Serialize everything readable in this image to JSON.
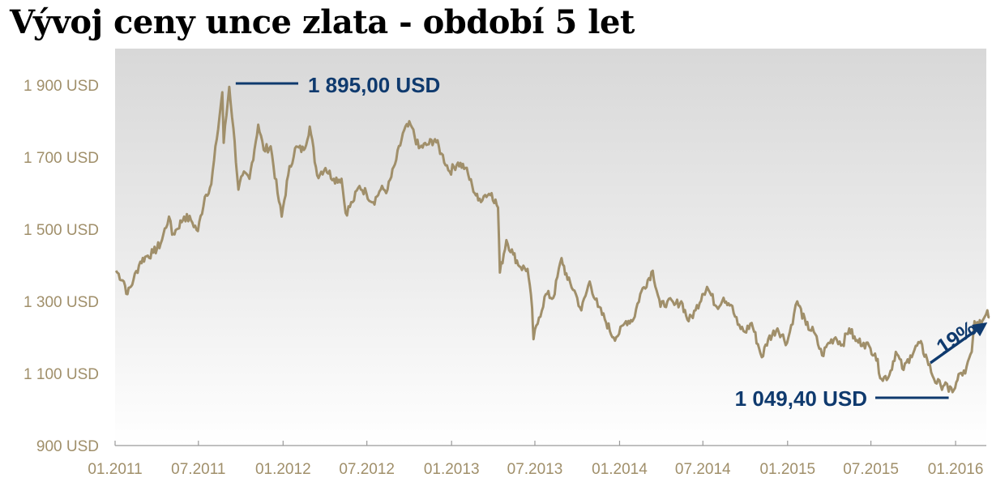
{
  "chart_data": {
    "type": "line",
    "title": "Vývoj ceny unce zlata - období 5 let",
    "xlabel": "",
    "ylabel": "",
    "x_ticks": [
      "01.2011",
      "07.2011",
      "01.2012",
      "07.2012",
      "01.2013",
      "07.2013",
      "01.2014",
      "07.2014",
      "01.2015",
      "07.2015",
      "01.2016"
    ],
    "y_ticks": [
      "900 USD",
      "1 100 USD",
      "1 300 USD",
      "1 500 USD",
      "1 700 USD",
      "1 900 USD"
    ],
    "ylim": [
      900,
      1950
    ],
    "xlim": [
      "2011-01",
      "2016-03"
    ],
    "grid": false,
    "legend": "none",
    "series": [
      {
        "points": [
          [
            "2011-01-03",
            1385
          ],
          [
            "2011-01-20",
            1355
          ],
          [
            "2011-01-28",
            1320
          ],
          [
            "2011-02-10",
            1360
          ],
          [
            "2011-02-25",
            1410
          ],
          [
            "2011-03-10",
            1425
          ],
          [
            "2011-03-25",
            1435
          ],
          [
            "2011-04-10",
            1460
          ],
          [
            "2011-04-28",
            1535
          ],
          [
            "2011-05-05",
            1485
          ],
          [
            "2011-05-15",
            1500
          ],
          [
            "2011-05-31",
            1535
          ],
          [
            "2011-06-15",
            1525
          ],
          [
            "2011-06-30",
            1495
          ],
          [
            "2011-07-15",
            1590
          ],
          [
            "2011-07-29",
            1625
          ],
          [
            "2011-08-10",
            1750
          ],
          [
            "2011-08-22",
            1880
          ],
          [
            "2011-08-25",
            1740
          ],
          [
            "2011-09-06",
            1895
          ],
          [
            "2011-09-15",
            1780
          ],
          [
            "2011-09-26",
            1610
          ],
          [
            "2011-10-05",
            1650
          ],
          [
            "2011-10-20",
            1640
          ],
          [
            "2011-11-08",
            1790
          ],
          [
            "2011-11-20",
            1720
          ],
          [
            "2011-12-05",
            1730
          ],
          [
            "2011-12-20",
            1600
          ],
          [
            "2011-12-29",
            1535
          ],
          [
            "2012-01-12",
            1650
          ],
          [
            "2012-01-27",
            1725
          ],
          [
            "2012-02-15",
            1720
          ],
          [
            "2012-02-28",
            1785
          ],
          [
            "2012-03-15",
            1650
          ],
          [
            "2012-04-02",
            1670
          ],
          [
            "2012-04-20",
            1640
          ],
          [
            "2012-05-07",
            1640
          ],
          [
            "2012-05-16",
            1545
          ],
          [
            "2012-05-31",
            1575
          ],
          [
            "2012-06-15",
            1620
          ],
          [
            "2012-06-30",
            1600
          ],
          [
            "2012-07-15",
            1575
          ],
          [
            "2012-07-31",
            1610
          ],
          [
            "2012-08-15",
            1610
          ],
          [
            "2012-08-31",
            1680
          ],
          [
            "2012-09-20",
            1775
          ],
          [
            "2012-10-04",
            1790
          ],
          [
            "2012-10-22",
            1725
          ],
          [
            "2012-11-10",
            1735
          ],
          [
            "2012-11-26",
            1750
          ],
          [
            "2012-12-10",
            1710
          ],
          [
            "2012-12-28",
            1660
          ],
          [
            "2013-01-15",
            1685
          ],
          [
            "2013-01-31",
            1670
          ],
          [
            "2013-02-15",
            1620
          ],
          [
            "2013-02-28",
            1580
          ],
          [
            "2013-03-15",
            1595
          ],
          [
            "2013-03-29",
            1600
          ],
          [
            "2013-04-12",
            1560
          ],
          [
            "2013-04-16",
            1380
          ],
          [
            "2013-04-30",
            1470
          ],
          [
            "2013-05-15",
            1430
          ],
          [
            "2013-05-31",
            1395
          ],
          [
            "2013-06-15",
            1390
          ],
          [
            "2013-06-25",
            1280
          ],
          [
            "2013-06-28",
            1195
          ],
          [
            "2013-07-10",
            1255
          ],
          [
            "2013-07-25",
            1320
          ],
          [
            "2013-08-10",
            1310
          ],
          [
            "2013-08-28",
            1420
          ],
          [
            "2013-09-10",
            1360
          ],
          [
            "2013-09-25",
            1330
          ],
          [
            "2013-10-10",
            1275
          ],
          [
            "2013-10-28",
            1355
          ],
          [
            "2013-11-15",
            1285
          ],
          [
            "2013-11-30",
            1250
          ],
          [
            "2013-12-19",
            1200
          ],
          [
            "2013-12-31",
            1210
          ],
          [
            "2014-01-15",
            1245
          ],
          [
            "2014-01-31",
            1250
          ],
          [
            "2014-02-15",
            1320
          ],
          [
            "2014-03-14",
            1385
          ],
          [
            "2014-03-31",
            1285
          ],
          [
            "2014-04-15",
            1300
          ],
          [
            "2014-04-30",
            1290
          ],
          [
            "2014-05-15",
            1300
          ],
          [
            "2014-05-31",
            1245
          ],
          [
            "2014-06-15",
            1275
          ],
          [
            "2014-06-30",
            1320
          ],
          [
            "2014-07-10",
            1340
          ],
          [
            "2014-07-31",
            1285
          ],
          [
            "2014-08-15",
            1310
          ],
          [
            "2014-08-31",
            1290
          ],
          [
            "2014-09-15",
            1235
          ],
          [
            "2014-09-30",
            1215
          ],
          [
            "2014-10-15",
            1240
          ],
          [
            "2014-10-31",
            1170
          ],
          [
            "2014-11-06",
            1145
          ],
          [
            "2014-11-20",
            1195
          ],
          [
            "2014-12-10",
            1225
          ],
          [
            "2014-12-31",
            1185
          ],
          [
            "2015-01-15",
            1265
          ],
          [
            "2015-01-22",
            1300
          ],
          [
            "2015-02-10",
            1235
          ],
          [
            "2015-02-27",
            1215
          ],
          [
            "2015-03-17",
            1150
          ],
          [
            "2015-03-31",
            1185
          ],
          [
            "2015-04-15",
            1200
          ],
          [
            "2015-04-30",
            1180
          ],
          [
            "2015-05-15",
            1225
          ],
          [
            "2015-05-29",
            1190
          ],
          [
            "2015-06-15",
            1185
          ],
          [
            "2015-06-30",
            1170
          ],
          [
            "2015-07-10",
            1155
          ],
          [
            "2015-07-24",
            1085
          ],
          [
            "2015-08-10",
            1095
          ],
          [
            "2015-08-24",
            1160
          ],
          [
            "2015-09-10",
            1110
          ],
          [
            "2015-09-25",
            1150
          ],
          [
            "2015-10-15",
            1185
          ],
          [
            "2015-10-31",
            1140
          ],
          [
            "2015-11-15",
            1085
          ],
          [
            "2015-11-30",
            1065
          ],
          [
            "2015-12-10",
            1075
          ],
          [
            "2015-12-17",
            1049.4
          ],
          [
            "2015-12-31",
            1060
          ],
          [
            "2016-01-10",
            1100
          ],
          [
            "2016-01-22",
            1100
          ],
          [
            "2016-02-05",
            1160
          ],
          [
            "2016-02-11",
            1245
          ],
          [
            "2016-02-20",
            1230
          ],
          [
            "2016-03-01",
            1250
          ],
          [
            "2016-03-10",
            1275
          ],
          [
            "2016-03-15",
            1255
          ]
        ]
      }
    ],
    "annotations": [
      {
        "text": "1 895,00 USD",
        "x": "2011-09-06",
        "y": 1895
      },
      {
        "text": "1 049,40 USD",
        "x": "2015-12-17",
        "y": 1049.4
      },
      {
        "text": "19%"
      }
    ],
    "colors": {
      "line": "#a08f6a",
      "tick_text": "#a08f6a",
      "annotation": "#0f3a6e",
      "title": "#000000"
    }
  }
}
